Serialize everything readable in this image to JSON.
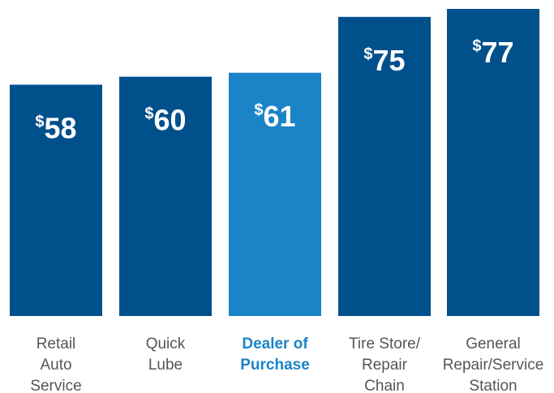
{
  "chart_data": {
    "type": "bar",
    "currency_symbol": "$",
    "categories": [
      [
        "Retail",
        "Auto",
        "Service"
      ],
      [
        "Quick",
        "Lube"
      ],
      [
        "Dealer of",
        "Purchase"
      ],
      [
        "Tire Store/",
        "Repair",
        "Chain"
      ],
      [
        "General",
        "Repair/Service",
        "Station"
      ]
    ],
    "values": [
      58,
      60,
      61,
      75,
      77
    ],
    "highlight_index": 2,
    "colors": {
      "bar": "#00508c",
      "highlight_bar": "#1a84c7",
      "label": "#555555",
      "highlight_label": "#1a84c7"
    }
  }
}
